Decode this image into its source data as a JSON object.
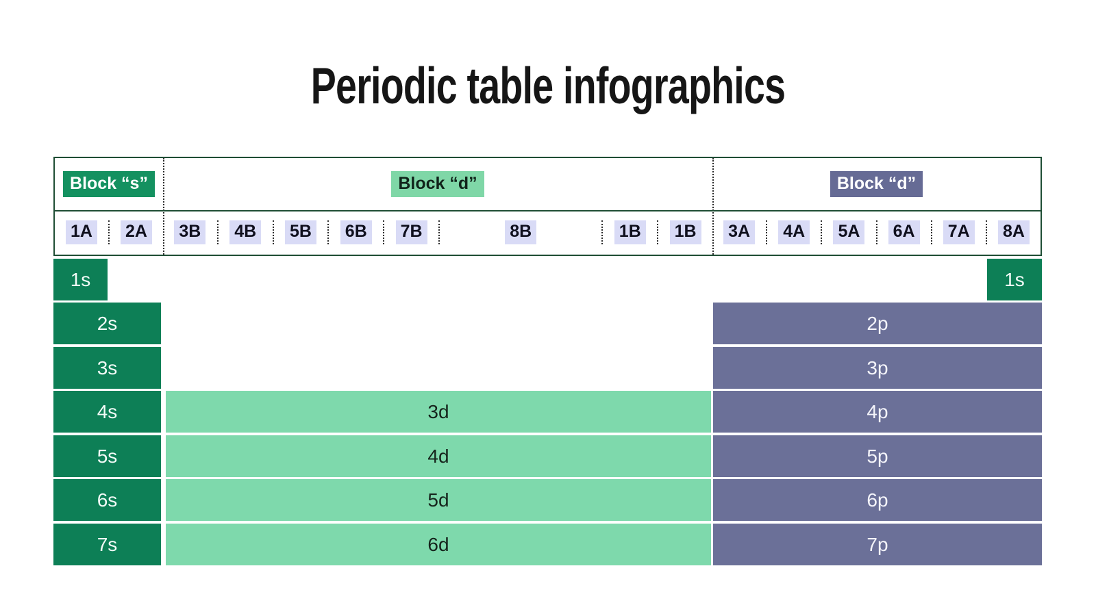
{
  "title": "Periodic table infographics",
  "header": {
    "sections": [
      {
        "id": "s",
        "label": "Block “s”"
      },
      {
        "id": "d",
        "label": "Block “d”"
      },
      {
        "id": "p",
        "label": "Block “d”"
      }
    ],
    "columns": {
      "s": [
        "1A",
        "2A"
      ],
      "d": [
        "3B",
        "4B",
        "5B",
        "6B",
        "7B",
        "8B",
        "1B",
        "1B"
      ],
      "p": [
        "3A",
        "4A",
        "5A",
        "6A",
        "7A",
        "8A"
      ]
    }
  },
  "grid": {
    "s_rows": [
      "1s",
      "2s",
      "3s",
      "4s",
      "5s",
      "6s",
      "7s"
    ],
    "s_right_row": "1s",
    "d_rows": [
      "3d",
      "4d",
      "5d",
      "6d"
    ],
    "p_rows": [
      "2p",
      "3p",
      "4p",
      "5p",
      "6p",
      "7p"
    ]
  },
  "colors": {
    "s_cell": "#0D7F56",
    "s_badge": "#149160",
    "d_cell": "#7ED9AC",
    "d_badge": "#7FD7A7",
    "p_cell": "#6B7098",
    "p_badge": "#666B95",
    "column_label_bg": "#D9DBF6",
    "frame_border": "#1E4D34"
  }
}
